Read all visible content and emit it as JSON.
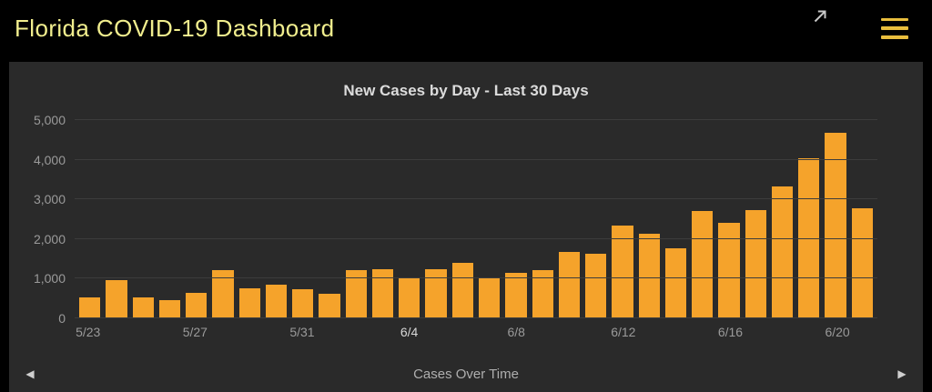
{
  "header": {
    "title": "Florida COVID-19 Dashboard",
    "title_color": "#f1ee8e",
    "menu_icon_color": "#e9be3d",
    "expand_icon_color": "#c9c9c9"
  },
  "chart": {
    "title": "New Cases by Day - Last 30 Days"
  },
  "chart_data": {
    "type": "bar",
    "title": "New Cases by Day - Last 30 Days",
    "categories": [
      "5/23",
      "5/24",
      "5/25",
      "5/26",
      "5/27",
      "5/28",
      "5/29",
      "5/30",
      "5/31",
      "6/1",
      "6/2",
      "6/3",
      "6/4",
      "6/5",
      "6/6",
      "6/7",
      "6/8",
      "6/9",
      "6/10",
      "6/11",
      "6/12",
      "6/13",
      "6/14",
      "6/15",
      "6/16",
      "6/17",
      "6/18",
      "6/19",
      "6/20",
      "6/21"
    ],
    "values": [
      530,
      970,
      530,
      470,
      640,
      1210,
      760,
      860,
      730,
      610,
      1210,
      1250,
      1010,
      1250,
      1400,
      1040,
      1150,
      1220,
      1670,
      1640,
      2340,
      2130,
      1760,
      2710,
      2420,
      2740,
      3320,
      4040,
      4670,
      2770
    ],
    "ylim": [
      0,
      5000
    ],
    "ytick_labels": [
      "0",
      "1,000",
      "2,000",
      "3,000",
      "4,000",
      "5,000"
    ],
    "xtick_labels": [
      "5/23",
      "5/27",
      "5/31",
      "6/4",
      "6/8",
      "6/12",
      "6/16",
      "6/20"
    ],
    "xtick_every": 4,
    "xtick_highlight": "6/4",
    "bar_color": "#f5a32b",
    "grid": true,
    "legend": false,
    "background": "#2a2a2a"
  },
  "footer": {
    "label": "Cases Over Time",
    "left_arrow": "◀",
    "right_arrow": "▶"
  }
}
